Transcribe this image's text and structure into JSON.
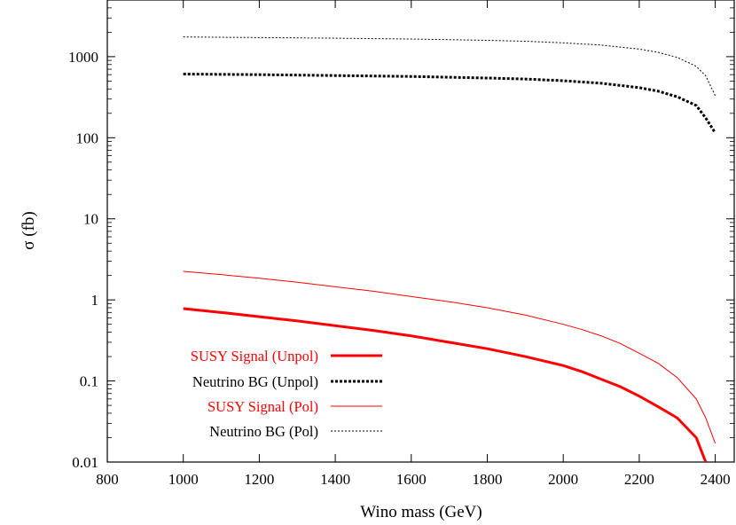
{
  "chart_data": {
    "type": "line",
    "title": "",
    "xlabel": "Wino mass (GeV)",
    "ylabel": "σ (fb)",
    "xlim": [
      800,
      2450
    ],
    "ylim": [
      0.01,
      5000
    ],
    "yscale": "log",
    "grid": false,
    "legend_position": "bottom-left",
    "x_ticks": [
      "800",
      "1000",
      "1200",
      "1400",
      "1600",
      "1800",
      "2000",
      "2200",
      "2400"
    ],
    "y_ticks": [
      "0.01",
      "0.1",
      "1",
      "10",
      "100",
      "1000"
    ],
    "series": [
      {
        "name": "SUSY Signal (Unpol)",
        "color": "#ff0000",
        "style": "solid-thick",
        "x": [
          1000,
          1100,
          1200,
          1300,
          1400,
          1500,
          1600,
          1700,
          1800,
          1900,
          2000,
          2050,
          2100,
          2150,
          2200,
          2250,
          2300,
          2350,
          2375
        ],
        "y": [
          0.78,
          0.7,
          0.62,
          0.55,
          0.48,
          0.42,
          0.36,
          0.3,
          0.25,
          0.2,
          0.155,
          0.13,
          0.105,
          0.085,
          0.065,
          0.048,
          0.035,
          0.02,
          0.01
        ]
      },
      {
        "name": "Neutrino BG (Unpol)",
        "color": "#000000",
        "style": "dotted-thick",
        "x": [
          1000,
          1200,
          1400,
          1600,
          1800,
          1900,
          2000,
          2100,
          2200,
          2250,
          2300,
          2350,
          2375,
          2400
        ],
        "y": [
          610,
          600,
          585,
          570,
          545,
          530,
          505,
          470,
          415,
          375,
          320,
          250,
          175,
          115
        ]
      },
      {
        "name": "SUSY Signal (Pol)",
        "color": "#ff0000",
        "style": "solid-thin",
        "x": [
          1000,
          1100,
          1200,
          1300,
          1400,
          1500,
          1600,
          1700,
          1800,
          1900,
          2000,
          2050,
          2100,
          2150,
          2200,
          2250,
          2300,
          2350,
          2375,
          2400
        ],
        "y": [
          2.25,
          2.05,
          1.85,
          1.65,
          1.45,
          1.28,
          1.1,
          0.95,
          0.8,
          0.65,
          0.5,
          0.43,
          0.36,
          0.29,
          0.22,
          0.165,
          0.11,
          0.06,
          0.035,
          0.017
        ]
      },
      {
        "name": "Neutrino BG (Pol)",
        "color": "#000000",
        "style": "dotted-thin",
        "x": [
          1000,
          1200,
          1400,
          1600,
          1800,
          1900,
          2000,
          2100,
          2200,
          2250,
          2300,
          2350,
          2375,
          2400
        ],
        "y": [
          1750,
          1720,
          1690,
          1650,
          1590,
          1550,
          1480,
          1390,
          1240,
          1130,
          980,
          760,
          580,
          330
        ]
      }
    ]
  }
}
